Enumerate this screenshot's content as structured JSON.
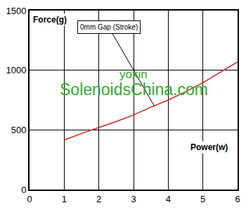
{
  "chart_data": {
    "type": "line",
    "x_label": "Power(w)",
    "y_label": "Force(g)",
    "x": [
      1,
      1.5,
      2,
      2.5,
      3,
      3.5,
      4,
      4.5,
      5,
      5.5,
      6
    ],
    "series": [
      {
        "name": "0mm Gap (Stroke)",
        "color": "#cc2222",
        "values": [
          415,
          470,
          520,
          570,
          625,
          690,
          750,
          820,
          895,
          980,
          1070
        ]
      }
    ],
    "xlim": [
      0,
      6
    ],
    "xticks": [
      0,
      1,
      2,
      3,
      4,
      5,
      6
    ],
    "ylim": [
      0,
      1500
    ],
    "yticks": [
      0,
      500,
      1000,
      1500
    ],
    "grid": true,
    "annotations": [
      {
        "text": "0mm Gap (Stroke)",
        "x": 3.6,
        "y": 700
      },
      {
        "text": "yoxin",
        "color": "#33aa33"
      },
      {
        "text": "SolenoidsChina.com",
        "color": "#33aa33"
      }
    ]
  }
}
